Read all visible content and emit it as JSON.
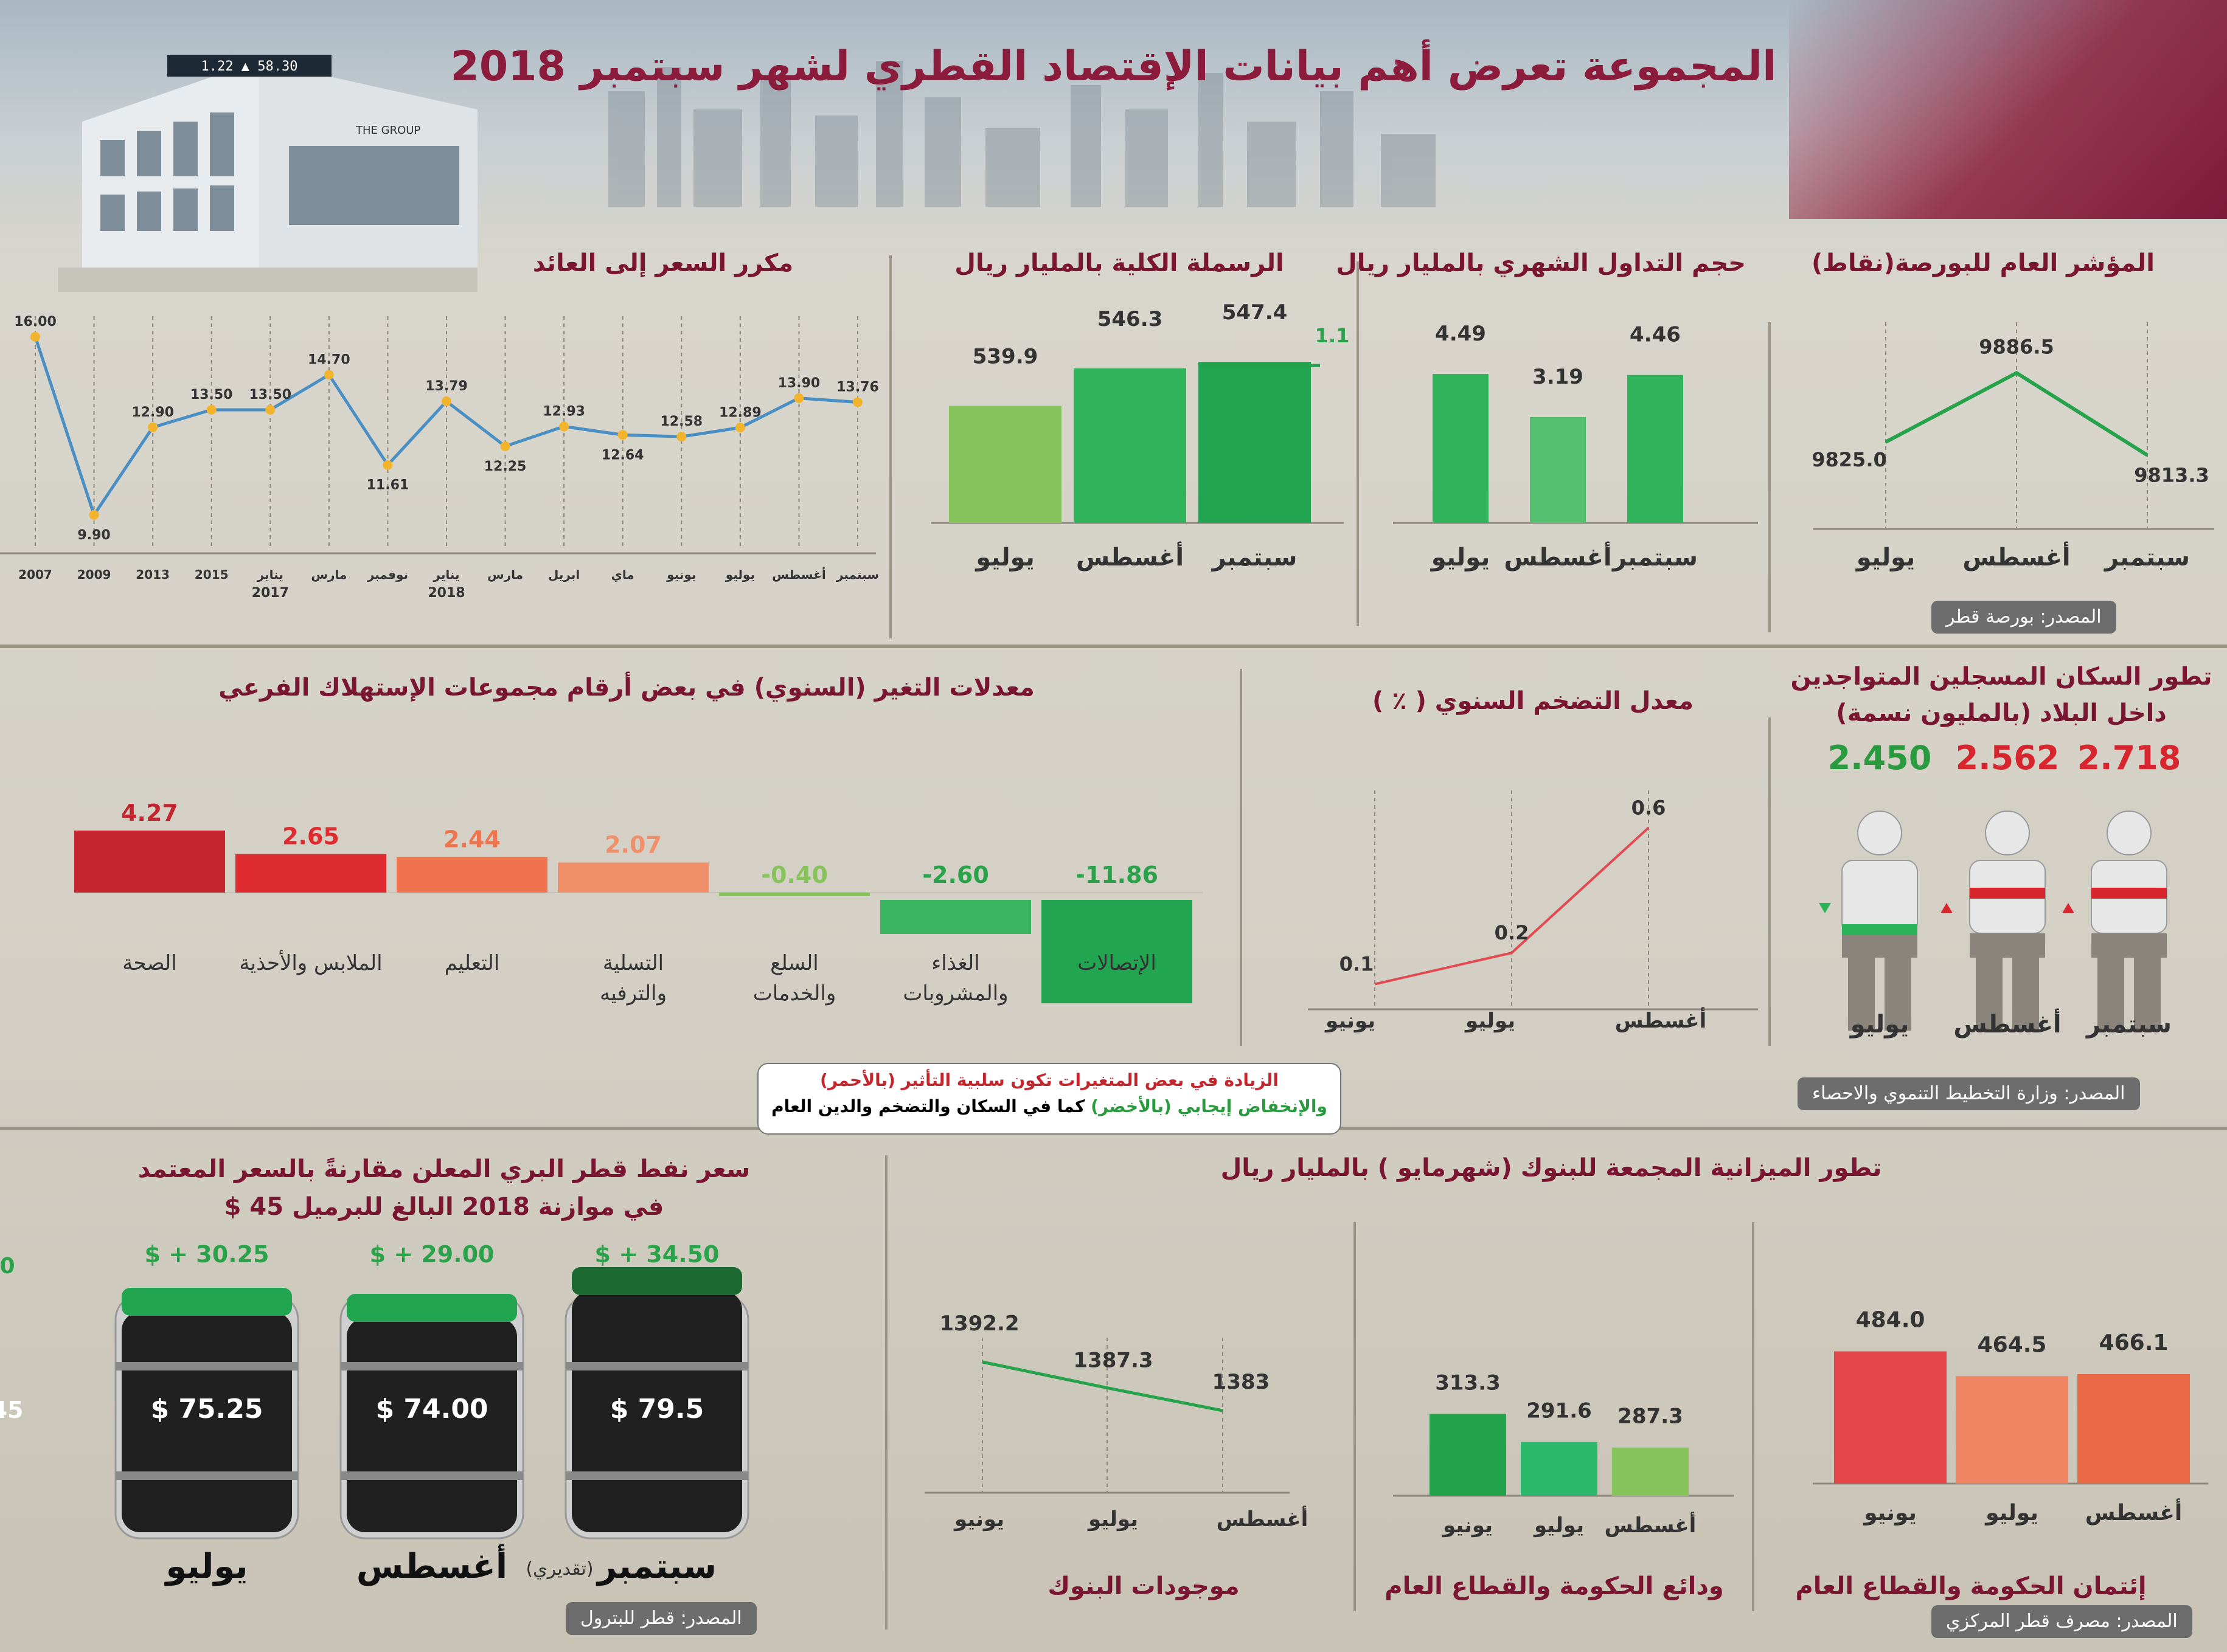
{
  "header": {
    "title": "المجموعة تعرض أهم بيانات الإقتصاد القطري لشهر  سبتمبر  2018"
  },
  "building": {
    "sign": "THE GROUP",
    "ticker": "1.22  ▲  58.30"
  },
  "colors": {
    "maroon": "#8b1c3c",
    "green": "#2bb35a",
    "red": "#d8262e",
    "orange": "#ef7a50"
  },
  "panels": {
    "pe": {
      "title": "مكرر السعر إلى العائد"
    },
    "mcap": {
      "title": "الرسملة الكلية بالمليار ريال"
    },
    "tv": {
      "title": "حجم التداول الشهري بالمليار ريال"
    },
    "index": {
      "title": "المؤشر العام للبورصة(نقاط)",
      "source": "المصدر: بورصة قطر"
    },
    "cpi": {
      "title": "معدلات التغير (السنوي) في بعض أرقام مجموعات الإستهلاك الفرعي"
    },
    "infl": {
      "title": "معدل التضخم السنوي ( ٪ )"
    },
    "pop": {
      "title_l1": "تطور السكان المسجلين المتواجدين",
      "title_l2": "داخل البلاد (بالمليون نسمة)",
      "source": "المصدر: وزارة التخطيط التنموي والاحصاء"
    },
    "oil": {
      "title_l1": "سعر نفط قطر البري المعلن مقارنةً بالسعر المعتمد",
      "title_l2": "في موازنة 2018 البالغ للبرميل 45 $",
      "source": "المصدر: قطر للبترول",
      "estimate": "(تقديري)",
      "edge_val": "0",
      "edge_val2": "45"
    },
    "banks": {
      "title": "تطور الميزانية المجمعة للبنوك (شهرمايو ) بالمليار ريال",
      "source": "المصدر: مصرف قطر المركزي"
    },
    "assets": {
      "title": "موجودات البنوك"
    },
    "deposits": {
      "title": "ودائع الحكومة والقطاع العام"
    },
    "credit": {
      "title": "إئتمان الحكومة والقطاع العام"
    }
  },
  "note": {
    "line1": "الزيادة في بعض المتغيرات تكون سلبية التأثير (بالأحمر)",
    "line2_green": "والإنخفاض إيجابي (بالأخضر)",
    "line2_rest": " كما في السكان والتضخم والدين العام"
  },
  "chart_data": [
    {
      "id": "pe",
      "type": "line",
      "title": "مكرر السعر إلى العائد",
      "categories": [
        "2007",
        "2009",
        "2013",
        "2015",
        "يناير 2017",
        "مارس",
        "نوفمبر",
        "يناير 2018",
        "مارس",
        "ابريل",
        "ماي",
        "يونيو",
        "يوليو",
        "أغسطس",
        "سبتمبر"
      ],
      "tick_top": [
        "2007",
        "2009",
        "2013",
        "2015",
        "يناير",
        "مارس",
        "نوفمبر",
        "يناير",
        "مارس",
        "ابريل",
        "ماي",
        "يونيو",
        "يوليو",
        "أغسطس",
        "سبتمبر"
      ],
      "tick_bottom": [
        "",
        "",
        "",
        "",
        "2017",
        "",
        "",
        "2018",
        "",
        "",
        "",
        "",
        "",
        "",
        ""
      ],
      "values": [
        16.0,
        9.9,
        12.9,
        13.5,
        13.5,
        14.7,
        11.61,
        13.79,
        12.25,
        12.93,
        12.64,
        12.58,
        12.89,
        13.9,
        13.76
      ],
      "labels": [
        "16.00",
        "9.90",
        "12.90",
        "13.50",
        "13.50",
        "14.70",
        "11.61",
        "13.79",
        "12.25",
        "12.93",
        "12.64",
        "12.58",
        "12.89",
        "13.90",
        "13.76"
      ],
      "ylim": [
        9,
        16.5
      ]
    },
    {
      "id": "mcap",
      "type": "bar",
      "title": "الرسملة الكلية بالمليار ريال",
      "categories": [
        "يوليو",
        "أغسطس",
        "سبتمبر"
      ],
      "values": [
        539.9,
        546.3,
        547.4
      ],
      "labels": [
        "539.9",
        "546.3",
        "547.4"
      ],
      "increase_label": "1.1",
      "ylim": [
        520,
        550
      ]
    },
    {
      "id": "tv",
      "type": "bar",
      "title": "حجم التداول الشهري بالمليار ريال",
      "categories": [
        "يوليو",
        "أغسطس",
        "سبتمبر"
      ],
      "values": [
        4.49,
        3.19,
        4.46
      ],
      "labels": [
        "4.49",
        "3.19",
        "4.46"
      ],
      "ylim": [
        0,
        5.5
      ]
    },
    {
      "id": "index",
      "type": "line",
      "title": "المؤشر العام للبورصة(نقاط)",
      "categories": [
        "يوليو",
        "أغسطس",
        "سبتمبر"
      ],
      "values": [
        9825.0,
        9886.5,
        9813.3
      ],
      "labels": [
        "9825.0",
        "9886.5",
        "9813.3"
      ],
      "ylim": [
        9780,
        9910
      ]
    },
    {
      "id": "cpi",
      "type": "bar",
      "title": "معدلات التغير (السنوي) في بعض أرقام مجموعات الإستهلاك الفرعي",
      "categories": [
        "الصحة",
        "الملابس والأحذية",
        "التعليم",
        "التسلية والترفيه",
        "السلع والخدمات",
        "الغذاء والمشروبات",
        "الإتصالات"
      ],
      "values": [
        4.27,
        2.65,
        2.44,
        2.07,
        -0.4,
        -2.6,
        -11.86
      ],
      "labels": [
        "4.27",
        "2.65",
        "2.44",
        "2.07",
        "-0.40",
        "-2.60",
        "-11.86"
      ]
    },
    {
      "id": "infl",
      "type": "line",
      "title": "معدل التضخم السنوي ( ٪ )",
      "categories": [
        "يونيو",
        "يوليو",
        "أغسطس"
      ],
      "values": [
        0.1,
        0.2,
        0.6
      ],
      "labels": [
        "0.1",
        "0.2",
        "0.6"
      ],
      "ylim": [
        0,
        0.7
      ]
    },
    {
      "id": "pop",
      "type": "bar",
      "title": "تطور السكان المسجلين المتواجدين داخل البلاد (بالمليون نسمة)",
      "categories": [
        "يوليو",
        "أغسطس",
        "سبتمبر"
      ],
      "values": [
        2.45,
        2.562,
        2.718
      ],
      "labels": [
        "2.450",
        "2.562",
        "2.718"
      ]
    },
    {
      "id": "oil",
      "type": "bar",
      "title": "سعر نفط قطر البري المعلن مقارنةً بالسعر المعتمد في موازنة 2018 البالغ للبرميل 45 $",
      "categories": [
        "يوليو",
        "أغسطس",
        "سبتمبر"
      ],
      "values": [
        75.25,
        74.0,
        79.5
      ],
      "labels": [
        "$ 75.25",
        "$ 74.00",
        "$ 79.5"
      ],
      "diff_labels": [
        "$ + 30.25",
        "$ + 29.00",
        "$ + 34.50"
      ],
      "budget": 45
    },
    {
      "id": "assets",
      "type": "line",
      "title": "موجودات البنوك",
      "categories": [
        "يونيو",
        "يوليو",
        "أغسطس"
      ],
      "values": [
        1392.2,
        1387.3,
        1383
      ],
      "labels": [
        "1392.2",
        "1387.3",
        "1383"
      ],
      "ylim": [
        1370,
        1400
      ]
    },
    {
      "id": "deposits",
      "type": "bar",
      "title": "ودائع الحكومة والقطاع العام",
      "categories": [
        "يونيو",
        "يوليو",
        "أغسطس"
      ],
      "values": [
        313.3,
        291.6,
        287.3
      ],
      "labels": [
        "313.3",
        "291.6",
        "287.3"
      ],
      "ylim": [
        250,
        330
      ]
    },
    {
      "id": "credit",
      "type": "bar",
      "title": "إئتمان الحكومة والقطاع العام",
      "categories": [
        "يونيو",
        "يوليو",
        "أغسطس"
      ],
      "values": [
        484.0,
        464.5,
        466.1
      ],
      "labels": [
        "484.0",
        "464.5",
        "466.1"
      ],
      "ylim": [
        380,
        490
      ]
    }
  ]
}
